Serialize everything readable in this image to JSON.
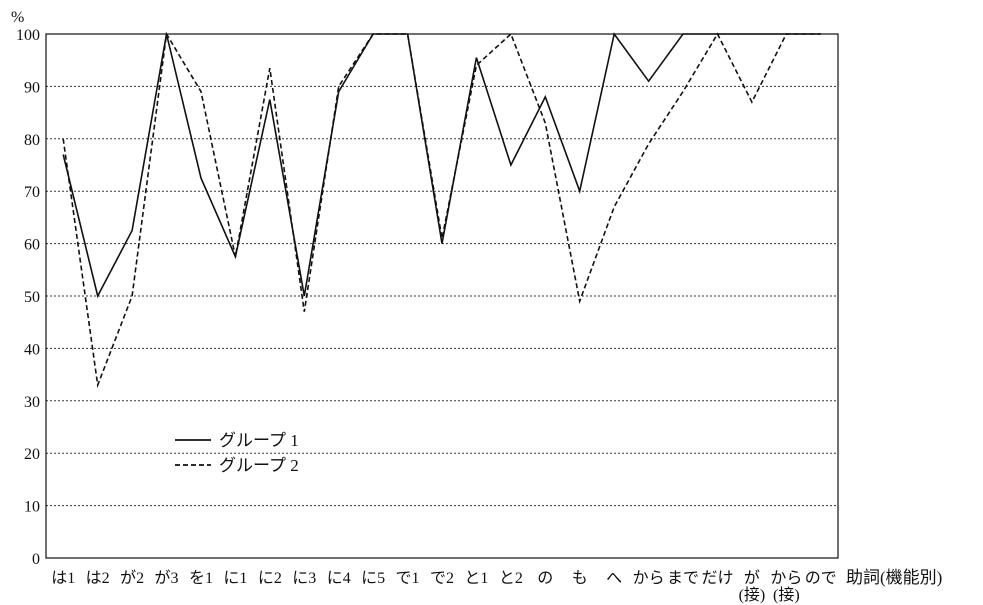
{
  "chart_data": {
    "type": "line",
    "y_unit": "%",
    "xlabel": "助詞(機能別)",
    "ylim": [
      0,
      100
    ],
    "y_ticks": [
      0,
      10,
      20,
      30,
      40,
      50,
      60,
      70,
      80,
      90,
      100
    ],
    "grid": "horizontal dotted",
    "legend_position": "center-left",
    "categories": [
      "は1",
      "は2",
      "が2",
      "が3",
      "を1",
      "に1",
      "に2",
      "に3",
      "に4",
      "に5",
      "で1",
      "で2",
      "と1",
      "と2",
      "の",
      "も",
      "へ",
      "から",
      "まで",
      "だけ",
      "が(接)",
      "から(接)",
      "ので"
    ],
    "category_labels": [
      [
        "は1"
      ],
      [
        "は2"
      ],
      [
        "が2"
      ],
      [
        "が3"
      ],
      [
        "を1"
      ],
      [
        "に1"
      ],
      [
        "に2"
      ],
      [
        "に3"
      ],
      [
        "に4"
      ],
      [
        "に5"
      ],
      [
        "で1"
      ],
      [
        "で2"
      ],
      [
        "と1"
      ],
      [
        "と2"
      ],
      [
        "の"
      ],
      [
        "も"
      ],
      [
        "へ"
      ],
      [
        "から"
      ],
      [
        "まで"
      ],
      [
        "だけ"
      ],
      [
        "が",
        "(接)"
      ],
      [
        "から",
        "(接)"
      ],
      [
        "ので"
      ]
    ],
    "series": [
      {
        "name": "グループ 1",
        "style": "solid",
        "color": "#111111",
        "values": [
          77,
          50,
          62.5,
          100,
          72.5,
          57.5,
          87.5,
          50,
          89,
          100,
          100,
          60,
          95.5,
          75,
          88,
          70,
          100,
          91,
          100,
          100,
          100,
          100,
          100
        ]
      },
      {
        "name": "グループ 2",
        "style": "dashed",
        "color": "#111111",
        "values": [
          80,
          33,
          50,
          100,
          89,
          57.5,
          93.5,
          47,
          90,
          100,
          100,
          61,
          94,
          100,
          83,
          49,
          67,
          79,
          89,
          100,
          87,
          100,
          100
        ]
      }
    ]
  }
}
